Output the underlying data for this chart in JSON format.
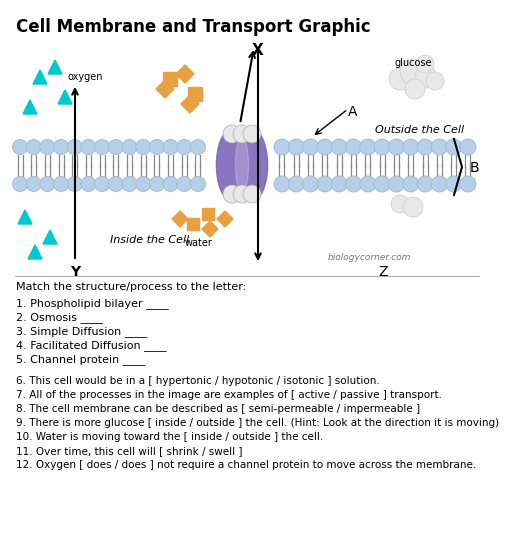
{
  "title": "Cell Membrane and Transport Graphic",
  "title_fontsize": 12,
  "title_fontweight": "bold",
  "bg_color": "#ffffff",
  "match_header": "Match the structure/process to the letter:",
  "match_questions": [
    "1. Phospholipid bilayer ____",
    "2. Osmosis ____",
    "3. Simple Diffusion ____",
    "4. Facilitated Diffusion ____",
    "5. Channel protein ____"
  ],
  "true_false_questions": [
    "6. This cell would be in a [ hypertonic / hypotonic / isotonic ] solution.",
    "7. All of the processes in the image are examples of [ active / passive ] transport.",
    "8. The cell membrane can be described as [ semi-permeable / impermeable ]",
    "9. There is more glucose [ inside / outside ] the cell. (Hint: Look at the direction it is moving)",
    "10. Water is moving toward the [ inside / outside ] the cell.",
    "11. Over time, this cell will [ shrink / swell ]",
    "12. Oxygen [ does / does ] not require a channel protein to move across the membrane."
  ],
  "watermark": "biologycorner.com",
  "head_color": "#b8cfe8",
  "head_color_dark": "#9ab8d8",
  "tail_color": "#888888",
  "protein_color": "#7b68b8",
  "protein_light": "#c8b8e8",
  "cyan_color": "#00c8d0",
  "orange_color": "#e8a040",
  "cloud_color": "#e8e8e8"
}
